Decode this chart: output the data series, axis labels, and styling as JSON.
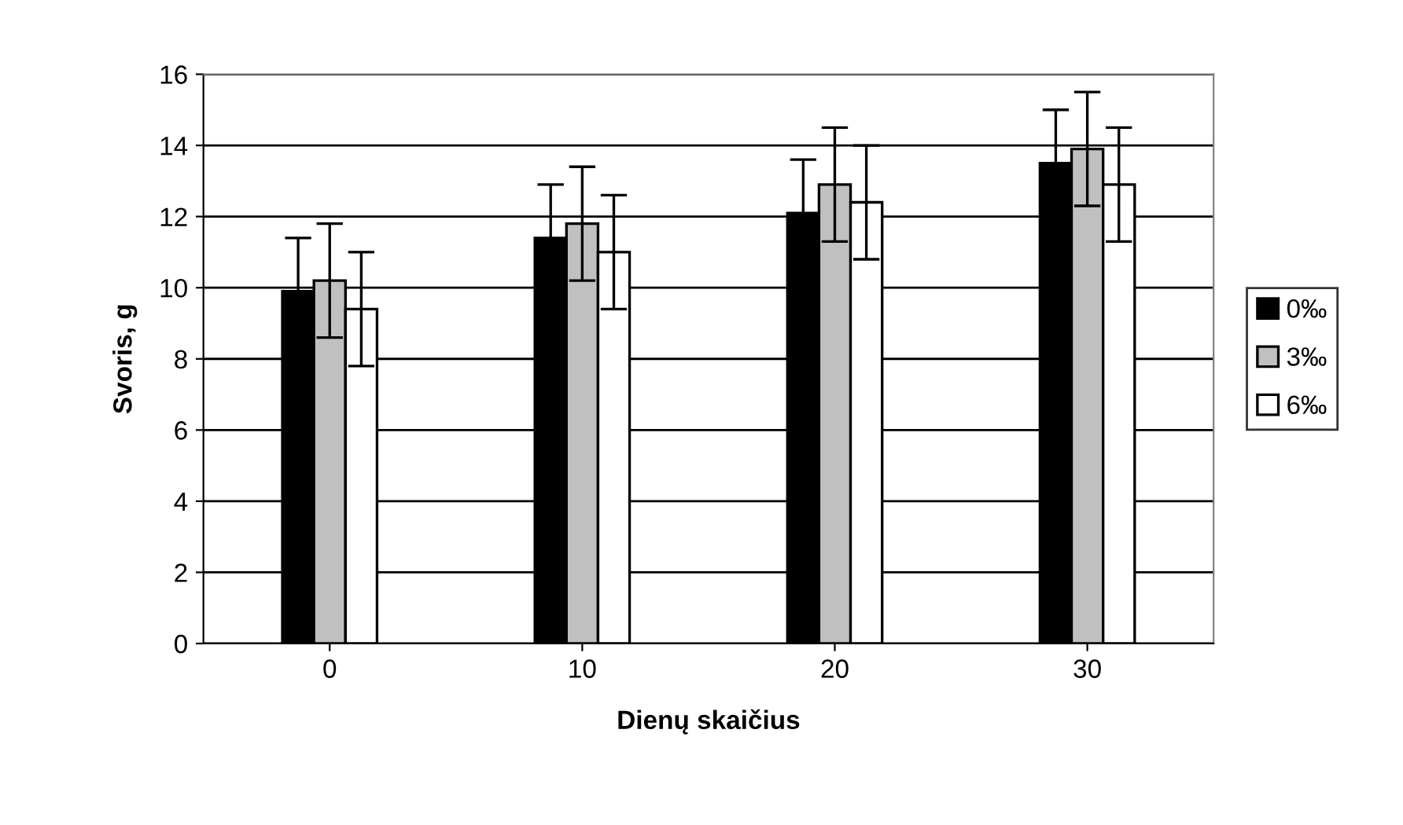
{
  "chart_data": {
    "type": "bar",
    "xlabel": "Dienų skaičius",
    "ylabel": "Svoris, g",
    "categories": [
      "0",
      "10",
      "20",
      "30"
    ],
    "series": [
      {
        "name": "0‰",
        "color": "#000000",
        "values": [
          9.9,
          11.4,
          12.1,
          13.5
        ],
        "errors": [
          1.5,
          1.5,
          1.5,
          1.5
        ]
      },
      {
        "name": "3‰",
        "color": "#c0c0c0",
        "values": [
          10.2,
          11.8,
          12.9,
          13.9
        ],
        "errors": [
          1.6,
          1.6,
          1.6,
          1.6
        ]
      },
      {
        "name": "6‰",
        "color": "#ffffff",
        "values": [
          9.4,
          11.0,
          12.4,
          12.9
        ],
        "errors": [
          1.6,
          1.6,
          1.6,
          1.6
        ]
      }
    ],
    "ylim": [
      0,
      16
    ],
    "yticks": [
      0,
      2,
      4,
      6,
      8,
      10,
      12,
      14,
      16
    ],
    "grid": "y",
    "legend": "right"
  }
}
